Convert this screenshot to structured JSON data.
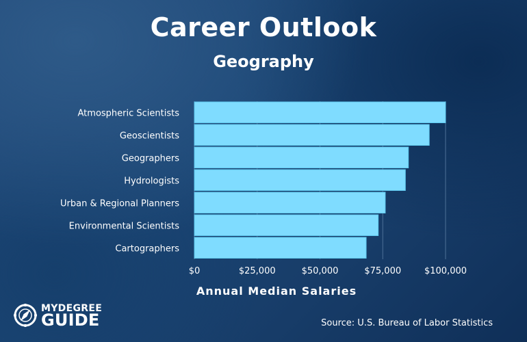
{
  "header": {
    "title": "Career Outlook",
    "subtitle": "Geography"
  },
  "footer": {
    "source": "Source: U.S. Bureau of Labor Statistics",
    "logo_line1": "MYDEGREE",
    "logo_line2": "GUIDE"
  },
  "colors": {
    "bar": "#7fdcff",
    "bar_border": "#5fc8ef",
    "gridline": "#4d7097"
  },
  "chart_data": {
    "type": "bar",
    "orientation": "horizontal",
    "title": "Career Outlook",
    "subtitle": "Geography",
    "xlabel": "Annual Median Salaries",
    "ylabel": "",
    "categories": [
      "Atmospheric Scientists",
      "Geoscientists",
      "Geographers",
      "Hydrologists",
      "Urban & Regional Planners",
      "Environmental Scientists",
      "Cartographers"
    ],
    "values": [
      100000,
      93500,
      85200,
      84000,
      76000,
      73200,
      68400
    ],
    "xlim": [
      0,
      100000
    ],
    "xticks": [
      0,
      25000,
      50000,
      75000,
      100000
    ],
    "xtick_labels": [
      "$0",
      "$25,000",
      "$50,000",
      "$75,000",
      "$100,000"
    ],
    "grid": true,
    "legend": "none"
  }
}
